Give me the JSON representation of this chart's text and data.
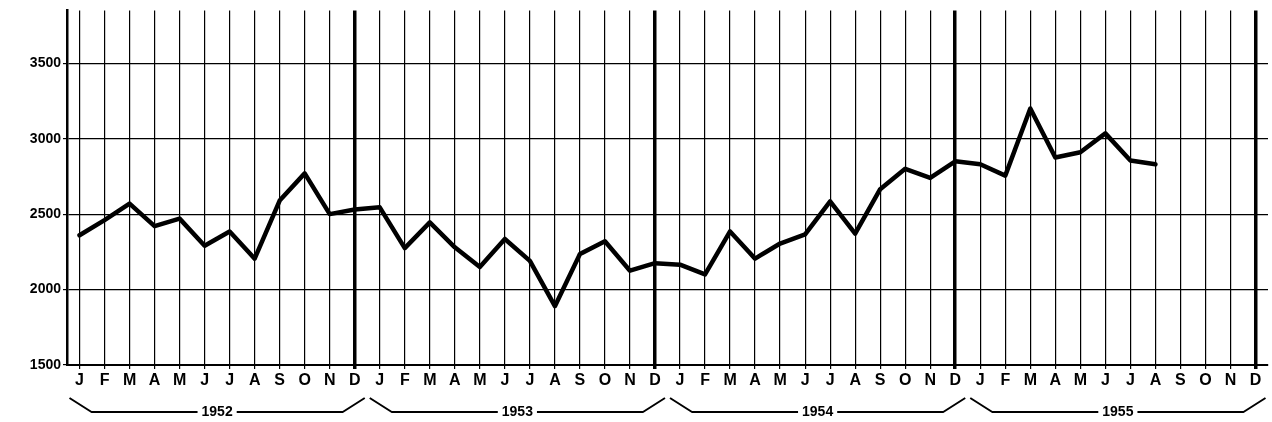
{
  "chart_data": {
    "type": "line",
    "categories": [
      "J",
      "F",
      "M",
      "A",
      "M",
      "J",
      "J",
      "A",
      "S",
      "O",
      "N",
      "D",
      "J",
      "F",
      "M",
      "A",
      "M",
      "J",
      "J",
      "A",
      "S",
      "O",
      "N",
      "D",
      "J",
      "F",
      "M",
      "A",
      "M",
      "J",
      "J",
      "A",
      "S",
      "O",
      "N",
      "D",
      "J",
      "F",
      "M",
      "A",
      "M",
      "J",
      "J",
      "A",
      "S",
      "O",
      "N",
      "D"
    ],
    "series": [
      {
        "color": "#000000",
        "values": [
          2360,
          2460,
          2570,
          2420,
          2470,
          2290,
          2385,
          2205,
          2590,
          2770,
          2500,
          2530,
          2545,
          2275,
          2445,
          2280,
          2150,
          2335,
          2190,
          1890,
          2235,
          2320,
          2125,
          2175,
          2165,
          2100,
          2385,
          2205,
          2305,
          2365,
          2585,
          2370,
          2665,
          2800,
          2740,
          2850,
          2830,
          2755,
          3200,
          2875,
          2910,
          3035,
          2855,
          2830,
          null,
          null,
          null,
          null
        ]
      }
    ],
    "ylim": [
      1500,
      3850
    ],
    "yticks": [
      1500,
      2000,
      2500,
      3000,
      3500
    ],
    "annotations": [
      "1952",
      "1953",
      "1954",
      "1955"
    ],
    "grid": true,
    "legend": false,
    "marker": "none",
    "line_style": "solid"
  }
}
